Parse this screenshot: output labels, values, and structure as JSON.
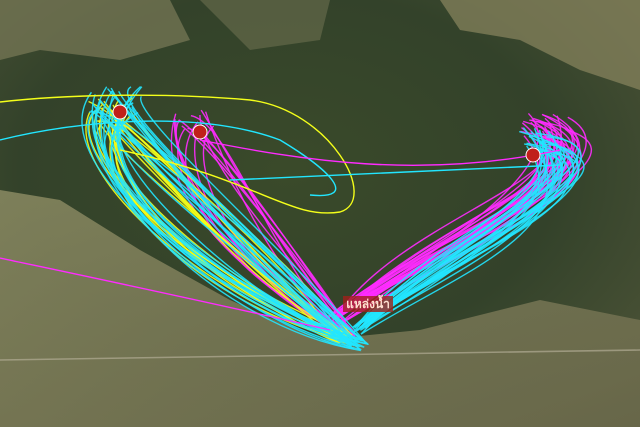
{
  "map": {
    "labels": [
      {
        "text": "แหล่งน้ำ"
      }
    ]
  }
}
